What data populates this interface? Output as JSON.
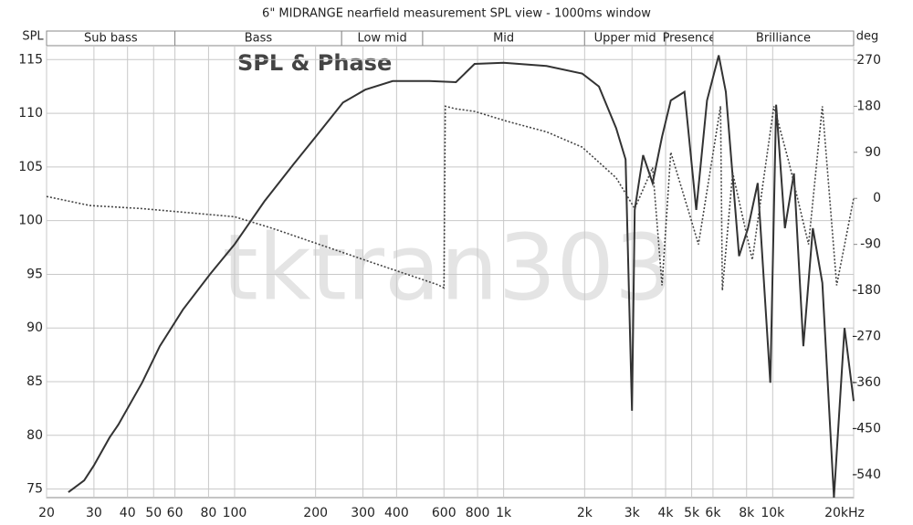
{
  "chart_data": {
    "type": "line",
    "title": "6\" MIDRANGE nearfield measurement SPL view - 1000ms window",
    "ylabel": "SPL",
    "y2label": "deg",
    "annotation": "SPL & Phase",
    "watermark": "tktran303",
    "log_x": true,
    "grid": true,
    "xlim": [
      20,
      20000
    ],
    "ylim": [
      74.2,
      116.3
    ],
    "y2lim": [
      -585,
      298.5
    ],
    "xticks": [
      20,
      30,
      40,
      50,
      60,
      80,
      100,
      200,
      300,
      400,
      600,
      800,
      {
        "value": 1000,
        "label": "1k"
      },
      {
        "value": 2000,
        "label": "2k"
      },
      {
        "value": 3000,
        "label": "3k"
      },
      {
        "value": 4000,
        "label": "4k"
      },
      {
        "value": 5000,
        "label": "5k"
      },
      {
        "value": 6000,
        "label": "6k"
      },
      {
        "value": 8000,
        "label": "8k"
      },
      {
        "value": 10000,
        "label": "10k"
      },
      {
        "value": 20000,
        "label": "20kHz"
      }
    ],
    "yticks": [
      75,
      80,
      85,
      90,
      95,
      100,
      105,
      110,
      115
    ],
    "y2ticks": [
      270,
      180,
      90,
      0,
      -90,
      -180,
      -270,
      -360,
      -450,
      -540
    ],
    "bands": [
      {
        "name": "Sub bass",
        "range": [
          20,
          60
        ]
      },
      {
        "name": "Bass",
        "range": [
          60,
          250
        ]
      },
      {
        "name": "Low mid",
        "range": [
          250,
          500
        ]
      },
      {
        "name": "Mid",
        "range": [
          500,
          2000
        ]
      },
      {
        "name": "Upper mid",
        "range": [
          2000,
          4000
        ]
      },
      {
        "name": "Presence",
        "range": [
          4000,
          6000
        ]
      },
      {
        "name": "Brilliance",
        "range": [
          6000,
          20000
        ]
      }
    ],
    "series": [
      {
        "color": "#333333",
        "style": "solid",
        "axis": "y",
        "x": [
          24.1,
          27.6,
          30,
          34.3,
          37,
          45.3,
          52.7,
          64.2,
          81,
          100,
          129,
          165,
          200,
          253,
          306,
          387,
          530,
          665,
          780,
          1000,
          1443,
          1960,
          2260,
          2620,
          2840,
          3000,
          3070,
          3300,
          3580,
          3880,
          4180,
          4700,
          5200,
          5700,
          6300,
          6700,
          7500,
          8100,
          8800,
          9800,
          10300,
          11100,
          12000,
          13000,
          14100,
          15300,
          16900,
          18500,
          20000
        ],
        "values": [
          74.7,
          75.8,
          77.2,
          79.8,
          81,
          84.9,
          88.3,
          91.7,
          95,
          97.8,
          101.8,
          105.2,
          107.8,
          111,
          112.2,
          113,
          113,
          112.9,
          114.6,
          114.7,
          114.4,
          113.7,
          112.5,
          108.6,
          105.7,
          82.3,
          101,
          106.1,
          103.5,
          107.8,
          111.2,
          112,
          101,
          111.2,
          115.4,
          112,
          96.7,
          99.3,
          103.5,
          84.9,
          110.8,
          99.3,
          104.4,
          88.3,
          99.3,
          94.2,
          74.2,
          90,
          83.2
        ]
      },
      {
        "color": "#444444",
        "style": "dotted",
        "axis": "y2",
        "x": [
          20,
          29,
          45,
          100,
          139,
          306,
          570,
          600,
          607,
          664,
          780,
          1040,
          1443,
          1960,
          2620,
          3070,
          3580,
          3880,
          4180,
          4900,
          5300,
          6400,
          6500,
          7100,
          8400,
          10100,
          11500,
          13600,
          15300,
          17300,
          20000
        ],
        "values": [
          3.6,
          -14,
          -20,
          -36,
          -59,
          -121,
          -169,
          -175,
          180,
          175,
          170,
          150,
          130,
          100,
          40,
          -20,
          60,
          -170,
          90,
          -30,
          -90,
          180,
          -180,
          50,
          -120,
          180,
          70,
          -90,
          180,
          -170,
          0
        ]
      }
    ]
  }
}
